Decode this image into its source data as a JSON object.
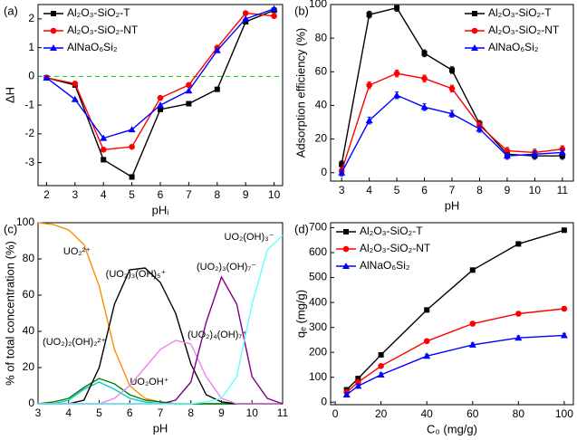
{
  "chart_data": [
    {
      "type": "line",
      "panel_label": "(a)",
      "x_label": "pHᵢ",
      "y_label": "ΔH",
      "x": [
        2,
        3,
        4,
        5,
        6,
        7,
        8,
        9,
        10
      ],
      "xlim": [
        1.7,
        10.3
      ],
      "xticks": [
        2,
        3,
        4,
        5,
        6,
        7,
        8,
        9,
        10
      ],
      "ylim": [
        -3.8,
        2.5
      ],
      "yticks": [
        -3,
        -2,
        -1,
        0,
        1,
        2
      ],
      "reference_line": 0,
      "reference_color": "#00cc00",
      "legend": "upper left",
      "series": [
        {
          "name": "Al₂O₃-SiO₂-T",
          "color": "#000000",
          "marker": "square",
          "values": [
            -0.05,
            -0.3,
            -2.9,
            -3.5,
            -1.15,
            -0.95,
            -0.45,
            1.9,
            2.3
          ]
        },
        {
          "name": "Al₂O₃-SiO₂-NT",
          "color": "#ff0000",
          "marker": "circle",
          "values": [
            -0.05,
            -0.25,
            -2.55,
            -2.45,
            -0.75,
            -0.3,
            1.0,
            2.2,
            2.1
          ]
        },
        {
          "name": "AlNaO₆Si₂",
          "color": "#0000ff",
          "marker": "triangle",
          "values": [
            -0.05,
            -0.8,
            -2.15,
            -1.85,
            -1.0,
            -0.5,
            0.9,
            2.0,
            2.35
          ]
        }
      ]
    },
    {
      "type": "line",
      "panel_label": "(b)",
      "x_label": "pH",
      "y_label": "Adsorption efficiency (%)",
      "x": [
        3,
        4,
        5,
        6,
        7,
        8,
        9,
        10,
        11
      ],
      "xlim": [
        2.6,
        11.4
      ],
      "xticks": [
        3,
        4,
        5,
        6,
        7,
        8,
        9,
        10,
        11
      ],
      "ylim": [
        -5,
        100
      ],
      "yticks": [
        0,
        20,
        40,
        60,
        80,
        100
      ],
      "legend": "upper right",
      "series": [
        {
          "name": "Al₂O₃-SiO₂-T",
          "color": "#000000",
          "marker": "square",
          "values": [
            5,
            94,
            98,
            71,
            61,
            29,
            11,
            10,
            10
          ],
          "errors": [
            2,
            2,
            2,
            2,
            2,
            2,
            2,
            2,
            2
          ]
        },
        {
          "name": "Al₂O₃-SiO₂-NT",
          "color": "#ff0000",
          "marker": "circle",
          "values": [
            1,
            52,
            59,
            56,
            50,
            28,
            13,
            12,
            14
          ],
          "errors": [
            2,
            2,
            2,
            2,
            2,
            2,
            2,
            2,
            2
          ]
        },
        {
          "name": "AlNaO₆Si₂",
          "color": "#0000ff",
          "marker": "triangle",
          "values": [
            0,
            31,
            46,
            39,
            35,
            26,
            10,
            11,
            12
          ],
          "errors": [
            2,
            2,
            2,
            2,
            2,
            2,
            2,
            2,
            2
          ]
        }
      ]
    },
    {
      "type": "line",
      "panel_label": "(c)",
      "x_label": "pH",
      "y_label": "% of total concentration (%)",
      "x": [
        3,
        3.5,
        4,
        4.5,
        5,
        5.5,
        6,
        6.5,
        7,
        7.5,
        8,
        8.5,
        9,
        9.5,
        10,
        10.5,
        11
      ],
      "xlim": [
        3,
        11
      ],
      "xticks": [
        3,
        4,
        5,
        6,
        7,
        8,
        9,
        10,
        11
      ],
      "ylim": [
        0,
        100
      ],
      "yticks": [
        0,
        20,
        40,
        60,
        80,
        100
      ],
      "legend": false,
      "series": [
        {
          "name": "UO₂²⁺",
          "color": "#ff8c00",
          "values": [
            100,
            99,
            96,
            88,
            65,
            30,
            10,
            3,
            1,
            0,
            0,
            0,
            0,
            0,
            0,
            0,
            0
          ]
        },
        {
          "name": "(UO₂)₂(OH)₂²⁺",
          "color": "#00cccc",
          "values": [
            0,
            0,
            2,
            8,
            12,
            8,
            3,
            1,
            0,
            0,
            0,
            0,
            0,
            0,
            0,
            0,
            0
          ]
        },
        {
          "name": "UO₂OH⁺",
          "color": "#008000",
          "values": [
            0,
            1,
            3,
            9,
            14,
            11,
            5,
            2,
            1,
            0,
            0,
            0,
            0,
            0,
            0,
            0,
            0
          ]
        },
        {
          "name": "(UO₂)₃(OH)₅⁺",
          "color": "#000000",
          "values": [
            0,
            0,
            0,
            2,
            20,
            55,
            74,
            75,
            67,
            50,
            22,
            5,
            1,
            0,
            0,
            0,
            0
          ]
        },
        {
          "name": "(UO₂)₄(OH)₇⁺",
          "color": "#ee82ee",
          "values": [
            0,
            0,
            0,
            0,
            0,
            3,
            10,
            20,
            30,
            35,
            33,
            15,
            3,
            0,
            0,
            0,
            0
          ]
        },
        {
          "name": "(UO₂)₃(OH)₇⁻",
          "color": "#800080",
          "values": [
            0,
            0,
            0,
            0,
            0,
            0,
            0,
            0,
            0,
            2,
            12,
            45,
            70,
            55,
            15,
            3,
            0
          ]
        },
        {
          "name": "UO₂(OH)₃⁻",
          "color": "#66ffff",
          "values": [
            0,
            0,
            0,
            0,
            0,
            0,
            0,
            0,
            0,
            0,
            0,
            1,
            3,
            15,
            55,
            85,
            93
          ]
        }
      ]
    },
    {
      "type": "line",
      "panel_label": "(d)",
      "x_label": "C₀ (mg/g)",
      "y_label": "qₑ (mg/g)",
      "x": [
        5,
        10,
        20,
        40,
        60,
        80,
        100
      ],
      "xlim": [
        -2,
        104
      ],
      "xticks": [
        0,
        20,
        40,
        60,
        80,
        100
      ],
      "ylim": [
        -10,
        720
      ],
      "yticks": [
        0,
        100,
        200,
        300,
        400,
        500,
        600,
        700
      ],
      "legend": "upper left",
      "series": [
        {
          "name": "Al₂O₃-SiO₂-T",
          "color": "#000000",
          "marker": "square",
          "values": [
            50,
            95,
            190,
            370,
            530,
            635,
            690
          ],
          "errors": [
            8,
            8,
            8,
            8,
            8,
            8,
            8
          ]
        },
        {
          "name": "Al₂O₃-SiO₂-NT",
          "color": "#ff0000",
          "marker": "circle",
          "values": [
            40,
            80,
            145,
            245,
            315,
            355,
            375
          ],
          "errors": [
            8,
            8,
            8,
            8,
            8,
            8,
            8
          ]
        },
        {
          "name": "AlNaO₆Si₂",
          "color": "#0000ff",
          "marker": "triangle",
          "values": [
            30,
            65,
            110,
            185,
            230,
            258,
            268
          ],
          "errors": [
            8,
            8,
            8,
            8,
            8,
            8,
            8
          ]
        }
      ]
    }
  ]
}
